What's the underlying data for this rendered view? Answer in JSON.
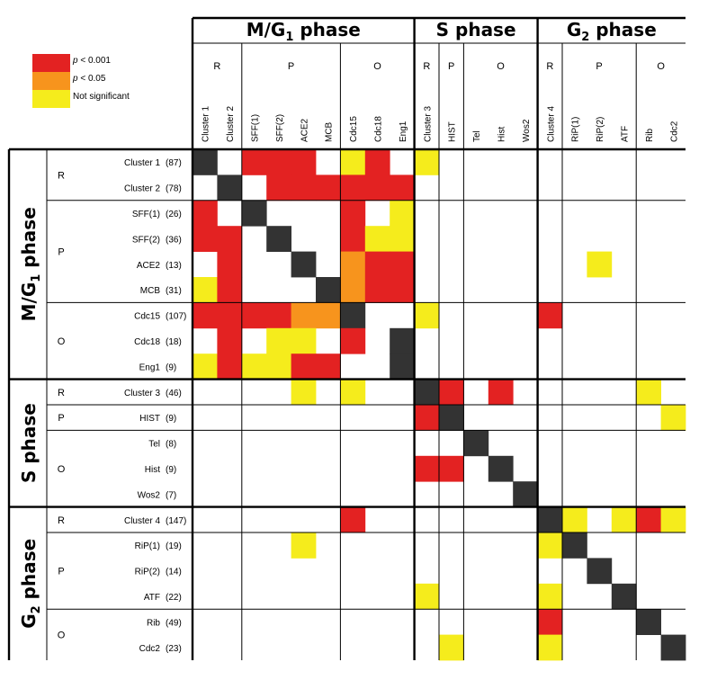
{
  "legend": {
    "items": [
      {
        "symbol": "p",
        "label": " < 0.001",
        "color": "#e32222",
        "key": "s"
      },
      {
        "symbol": "p",
        "label": " < 0.05",
        "color": "#f7941d",
        "key": "m"
      },
      {
        "symbol": "",
        "label": "Not significant",
        "color": "#f5ec1c",
        "key": "n"
      }
    ],
    "diagonal_color": "#333333"
  },
  "phases": [
    {
      "name": "M/G",
      "sub": "1",
      "suffix": " phase",
      "start": 0,
      "end": 9
    },
    {
      "name": "S phase",
      "sub": "",
      "suffix": "",
      "start": 9,
      "end": 14
    },
    {
      "name": "G",
      "sub": "2",
      "suffix": " phase",
      "start": 14,
      "end": 21
    }
  ],
  "groups": [
    {
      "label": "R",
      "start": 0,
      "end": 2
    },
    {
      "label": "P",
      "start": 2,
      "end": 6
    },
    {
      "label": "O",
      "start": 6,
      "end": 9
    },
    {
      "label": "R",
      "start": 9,
      "end": 10
    },
    {
      "label": "P",
      "start": 10,
      "end": 11
    },
    {
      "label": "O",
      "start": 11,
      "end": 14
    },
    {
      "label": "R",
      "start": 14,
      "end": 15
    },
    {
      "label": "P",
      "start": 15,
      "end": 18
    },
    {
      "label": "O",
      "start": 18,
      "end": 21
    }
  ],
  "chart_data": {
    "type": "heatmap",
    "columns": [
      "Cluster 1",
      "Cluster 2",
      "SFF(1)",
      "SFF(2)",
      "ACE2",
      "MCB",
      "Cdc15",
      "Cdc18",
      "Eng1",
      "Cluster 3",
      "HIST",
      "Tel",
      "Hist",
      "Wos2",
      "Cluster 4",
      "RiP(1)",
      "RiP(2)",
      "ATF",
      "Rib",
      "Cdc2"
    ],
    "rows": [
      {
        "label": "Cluster 1",
        "count": "(87)"
      },
      {
        "label": "Cluster 2",
        "count": "(78)"
      },
      {
        "label": "SFF(1)",
        "count": "(26)"
      },
      {
        "label": "SFF(2)",
        "count": "(36)"
      },
      {
        "label": "ACE2",
        "count": "(13)"
      },
      {
        "label": "MCB",
        "count": "(31)"
      },
      {
        "label": "Cdc15",
        "count": "(107)"
      },
      {
        "label": "Cdc18",
        "count": "(18)"
      },
      {
        "label": "Eng1",
        "count": "(9)"
      },
      {
        "label": "Cluster 3",
        "count": "(46)"
      },
      {
        "label": "HIST",
        "count": "(9)"
      },
      {
        "label": "Tel",
        "count": "(8)"
      },
      {
        "label": "Hist",
        "count": "(9)"
      },
      {
        "label": "Wos2",
        "count": "(7)"
      },
      {
        "label": "Cluster 4",
        "count": "(147)"
      },
      {
        "label": "RiP(1)",
        "count": "(19)"
      },
      {
        "label": "RiP(2)",
        "count": "(14)"
      },
      {
        "label": "ATF",
        "count": "(22)"
      },
      {
        "label": "Rib",
        "count": "(49)"
      },
      {
        "label": "Cdc2",
        "count": "(23)"
      }
    ],
    "cells": [
      "D.sss.ns.n..........",
      ".D.ssssss...........",
      "s.D...s.n...........",
      "ss.D..snn...........",
      ".s..D.mss.......n...",
      "ns...Dmss...........",
      "ssssmmD..n....s.....",
      ".s.nn.s.D...........",
      "nsnnss..D...........",
      "....n.n..Ds.s.....n.",
      ".........sD........n",
      "...........D........",
      ".........ss.D.......",
      ".............D......",
      "......s.......Dn.nsn",
      "....n.........nD....",
      "................D...",
      ".........n....n..D..",
      "..............s...D.",
      "..........n...n....D"
    ],
    "significance_levels": [
      "p < 0.001",
      "p < 0.05",
      "Not significant"
    ]
  }
}
